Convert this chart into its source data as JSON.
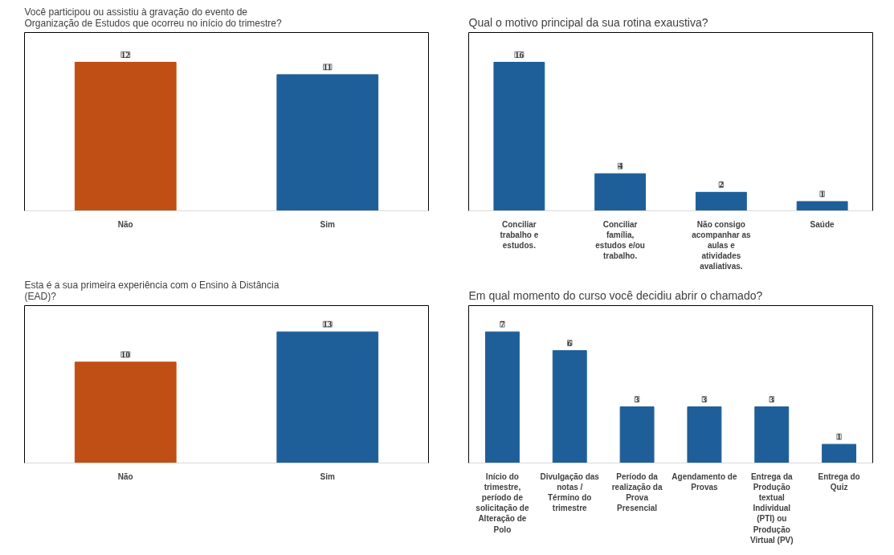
{
  "chart_data": [
    {
      "type": "bar",
      "title": "Você participou ou assistiu à gravação do evento de Organização de Estudos que ocorreu no início do trimestre?",
      "categories": [
        "Não",
        "Sim"
      ],
      "values": [
        12,
        11
      ],
      "colors": [
        "#c04f15",
        "#1f5f99"
      ],
      "data_labels": true,
      "grid": false
    },
    {
      "type": "bar",
      "title": "Qual o motivo principal da sua rotina exaustiva?",
      "categories": [
        "Conciliar trabalho e estudos.",
        "Conciliar família, estudos e/ou trabalho.",
        "Não consigo acompanhar as aulas e atividades avaliativas.",
        "Saúde"
      ],
      "values": [
        16,
        4,
        2,
        1
      ],
      "colors": [
        "#1f5f99",
        "#1f5f99",
        "#1f5f99",
        "#1f5f99"
      ],
      "data_labels": true,
      "grid": false
    },
    {
      "type": "bar",
      "title": "Esta é a sua primeira experiência com o Ensino à Distância (EAD)?",
      "categories": [
        "Não",
        "Sim"
      ],
      "values": [
        10,
        13
      ],
      "colors": [
        "#c04f15",
        "#1f5f99"
      ],
      "data_labels": true,
      "grid": false
    },
    {
      "type": "bar",
      "title": "Em qual momento do curso você decidiu abrir o chamado?",
      "categories": [
        "Início do trimestre, período de solicitação de Alteração de Polo",
        "Divulgação das notas / Término do trimestre",
        "Período da realização da Prova Presencial",
        "Agendamento de Provas",
        "Entrega da Produção textual Individual (PTI) ou Produção Virtual (PV)",
        "Entrega do Quiz"
      ],
      "values": [
        7,
        6,
        3,
        3,
        3,
        1
      ],
      "colors": [
        "#1f5f99",
        "#1f5f99",
        "#1f5f99",
        "#1f5f99",
        "#1f5f99",
        "#1f5f99"
      ],
      "data_labels": true,
      "grid": false
    }
  ]
}
